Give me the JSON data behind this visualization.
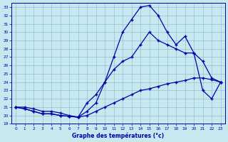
{
  "xlabel": "Graphe des températures (°c)",
  "bg_color": "#c8e8f0",
  "grid_color": "#90c0d0",
  "line_color": "#0000aa",
  "ylim": [
    19,
    33.5
  ],
  "xlim": [
    -0.5,
    23.5
  ],
  "yticks": [
    19,
    20,
    21,
    22,
    23,
    24,
    25,
    26,
    27,
    28,
    29,
    30,
    31,
    32,
    33
  ],
  "xticks": [
    0,
    1,
    2,
    3,
    4,
    5,
    6,
    7,
    8,
    9,
    10,
    11,
    12,
    13,
    14,
    15,
    16,
    17,
    18,
    19,
    20,
    21,
    22,
    23
  ],
  "line1_x": [
    0,
    1,
    2,
    3,
    4,
    5,
    6,
    7,
    8,
    9,
    10,
    11,
    12,
    13,
    14,
    15,
    16,
    17,
    18,
    19,
    20,
    21,
    22,
    23
  ],
  "line1_y": [
    21.0,
    21.0,
    20.8,
    20.5,
    20.5,
    20.3,
    20.0,
    19.8,
    20.0,
    20.5,
    21.0,
    21.5,
    22.0,
    22.5,
    23.0,
    23.2,
    23.5,
    23.8,
    24.0,
    24.2,
    24.5,
    24.5,
    24.3,
    24.0
  ],
  "line2_x": [
    0,
    1,
    2,
    3,
    4,
    5,
    6,
    7,
    8,
    9,
    10,
    11,
    12,
    13,
    14,
    15,
    16,
    17,
    18,
    19,
    20,
    21,
    22,
    23
  ],
  "line2_y": [
    21.0,
    20.8,
    20.5,
    20.2,
    20.2,
    20.0,
    19.9,
    19.8,
    20.5,
    21.5,
    24.0,
    27.0,
    30.0,
    31.5,
    33.0,
    33.2,
    32.0,
    30.0,
    28.5,
    29.5,
    27.5,
    23.0,
    22.0,
    24.0
  ],
  "line3_x": [
    0,
    1,
    2,
    3,
    4,
    5,
    6,
    7,
    8,
    9,
    10,
    11,
    12,
    13,
    14,
    15,
    16,
    17,
    18,
    19,
    20,
    21,
    22,
    23
  ],
  "line3_y": [
    21.0,
    20.8,
    20.5,
    20.2,
    20.2,
    20.0,
    19.9,
    19.8,
    21.5,
    22.5,
    24.0,
    25.5,
    26.5,
    27.0,
    28.5,
    30.0,
    29.0,
    28.5,
    28.0,
    27.5,
    27.5,
    26.5,
    24.5,
    24.0
  ]
}
